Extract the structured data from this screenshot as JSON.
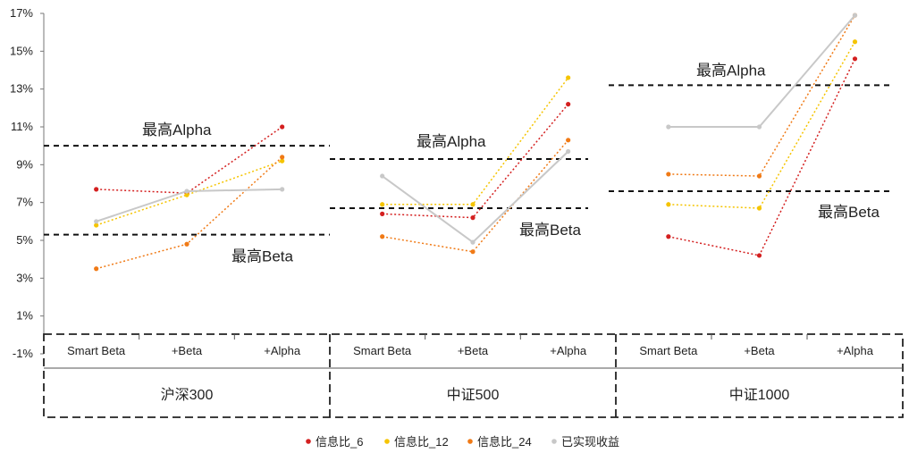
{
  "chart_data": {
    "type": "line",
    "ylim": [
      -1,
      17
    ],
    "yticks": [
      "-1%",
      "1%",
      "3%",
      "5%",
      "7%",
      "9%",
      "11%",
      "13%",
      "15%",
      "17%"
    ],
    "grid": false,
    "legend_position": "bottom",
    "categories": [
      "Smart Beta",
      "+Beta",
      "+Alpha"
    ],
    "groups": [
      {
        "name": "沪深300",
        "series_values": [
          [
            7.7,
            7.5,
            11.0
          ],
          [
            5.8,
            7.4,
            9.2
          ],
          [
            3.5,
            4.8,
            9.4
          ],
          [
            6.0,
            7.6,
            7.7
          ]
        ],
        "ref_lines": [
          {
            "label": "最高Alpha",
            "value": 10.0
          },
          {
            "label": "最高Beta",
            "value": 5.3
          }
        ]
      },
      {
        "name": "中证500",
        "series_values": [
          [
            6.4,
            6.2,
            12.2
          ],
          [
            6.9,
            6.9,
            13.6
          ],
          [
            5.2,
            4.4,
            10.3
          ],
          [
            8.4,
            4.9,
            9.7
          ]
        ],
        "ref_lines": [
          {
            "label": "最高Alpha",
            "value": 9.3
          },
          {
            "label": "最高Beta",
            "value": 6.7
          }
        ]
      },
      {
        "name": "中证1000",
        "series_values": [
          [
            5.2,
            4.2,
            14.6
          ],
          [
            6.9,
            6.7,
            15.5
          ],
          [
            8.5,
            8.4,
            16.9
          ],
          [
            11.0,
            11.0,
            16.9
          ]
        ],
        "ref_lines": [
          {
            "label": "最高Alpha",
            "value": 13.2
          },
          {
            "label": "最高Beta",
            "value": 7.6
          }
        ]
      }
    ],
    "series": [
      {
        "name": "信息比_6",
        "color": "#d42020",
        "dash": true
      },
      {
        "name": "信息比_12",
        "color": "#f5c400",
        "dash": true
      },
      {
        "name": "信息比_24",
        "color": "#f07a16",
        "dash": true
      },
      {
        "name": "已实现收益",
        "color": "#c8c8c8",
        "dash": false
      }
    ]
  }
}
